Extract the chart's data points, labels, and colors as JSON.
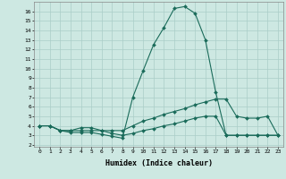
{
  "xlabel": "Humidex (Indice chaleur)",
  "background_color": "#cde8e2",
  "grid_color": "#aacdc8",
  "line_color": "#1a6b5a",
  "x_ticks": [
    0,
    1,
    2,
    3,
    4,
    5,
    6,
    7,
    8,
    9,
    10,
    11,
    12,
    13,
    14,
    15,
    16,
    17,
    18,
    19,
    20,
    21,
    22,
    23
  ],
  "y_ticks": [
    2,
    3,
    4,
    5,
    6,
    7,
    8,
    9,
    10,
    11,
    12,
    13,
    14,
    15,
    16
  ],
  "xlim": [
    -0.5,
    23.5
  ],
  "ylim": [
    1.8,
    17.0
  ],
  "lines": [
    {
      "x": [
        0,
        1,
        2,
        3,
        4,
        5,
        6,
        7,
        8,
        9,
        10,
        11,
        12,
        13,
        14,
        15,
        16,
        17,
        18,
        19,
        20,
        21,
        22,
        23
      ],
      "y": [
        4.0,
        4.0,
        3.5,
        3.3,
        3.3,
        3.3,
        3.1,
        2.9,
        2.7,
        7.0,
        9.8,
        12.5,
        14.3,
        16.3,
        16.5,
        15.8,
        13.0,
        7.5,
        3.0,
        3.0,
        3.0,
        3.0,
        3.0,
        3.0
      ]
    },
    {
      "x": [
        0,
        1,
        2,
        3,
        4,
        5,
        6,
        7,
        8,
        9,
        10,
        11,
        12,
        13,
        14,
        15,
        16,
        17,
        18,
        19,
        20,
        21,
        22,
        23
      ],
      "y": [
        4.0,
        4.0,
        3.5,
        3.5,
        3.5,
        3.5,
        3.5,
        3.5,
        3.5,
        4.0,
        4.5,
        4.8,
        5.2,
        5.5,
        5.8,
        6.2,
        6.5,
        6.8,
        6.8,
        5.0,
        4.8,
        4.8,
        5.0,
        3.0
      ]
    },
    {
      "x": [
        0,
        1,
        2,
        3,
        4,
        5,
        6,
        7,
        8,
        9,
        10,
        11,
        12,
        13,
        14,
        15,
        16,
        17,
        18,
        19,
        20,
        21,
        22,
        23
      ],
      "y": [
        4.0,
        4.0,
        3.5,
        3.5,
        3.8,
        3.8,
        3.5,
        3.2,
        3.0,
        3.2,
        3.5,
        3.7,
        4.0,
        4.2,
        4.5,
        4.8,
        5.0,
        5.0,
        3.0,
        3.0,
        3.0,
        3.0,
        3.0,
        3.0
      ]
    }
  ]
}
